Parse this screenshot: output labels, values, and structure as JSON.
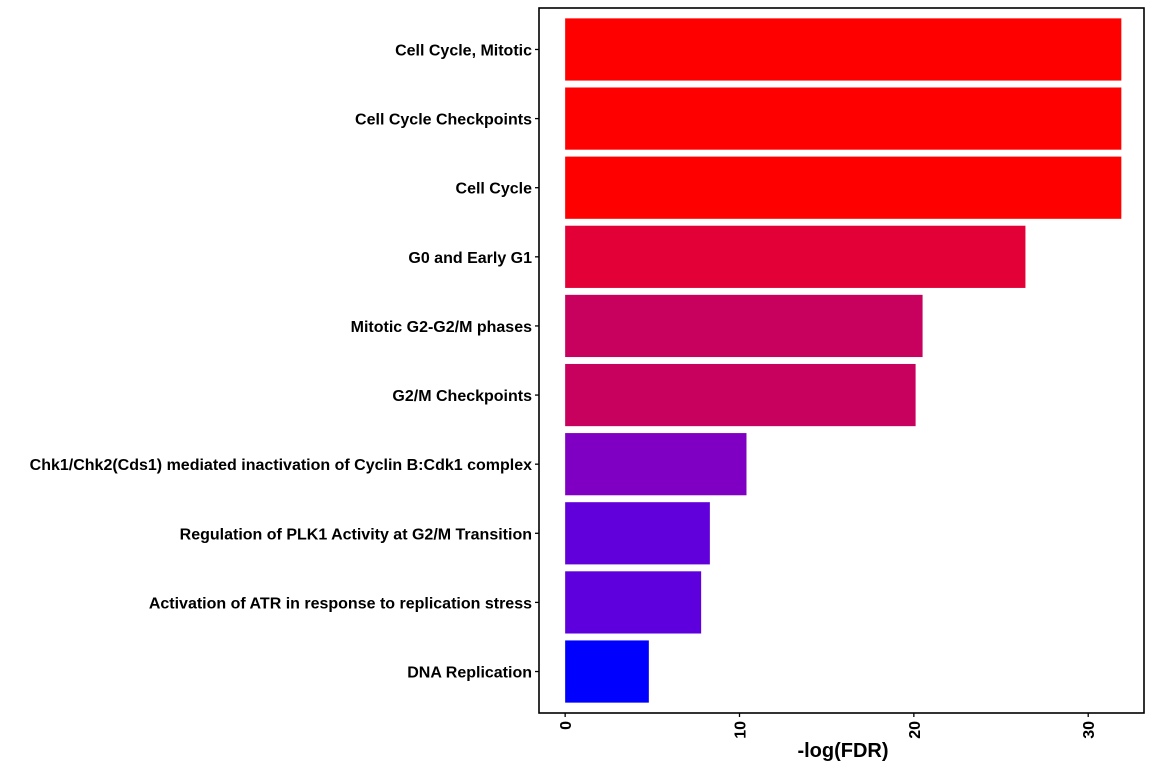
{
  "chart_data": {
    "type": "bar",
    "orientation": "horizontal",
    "categories": [
      "Cell Cycle, Mitotic",
      "Cell Cycle Checkpoints",
      "Cell Cycle",
      "G0 and Early G1",
      "Mitotic G2-G2/M phases",
      "G2/M Checkpoints",
      "Chk1/Chk2(Cds1) mediated inactivation of Cyclin B:Cdk1 complex",
      "Regulation of PLK1 Activity at G2/M Transition",
      "Activation of ATR in response to replication stress",
      "DNA Replication"
    ],
    "values": [
      31.9,
      31.9,
      31.9,
      26.4,
      20.5,
      20.1,
      10.4,
      8.3,
      7.8,
      4.8
    ],
    "colors": [
      "#FF0000",
      "#FF0000",
      "#FF0000",
      "#E30036",
      "#C8005E",
      "#C8005E",
      "#7F00C3",
      "#6200DB",
      "#5E00DE",
      "#0000FF"
    ],
    "title": "",
    "xlabel": "-log(FDR)",
    "ylabel": "",
    "xlim": [
      -1.5,
      33.2
    ],
    "xticks": [
      0,
      10,
      20,
      30
    ],
    "xtick_labels": [
      "0",
      "10",
      "20",
      "30"
    ],
    "grid": false,
    "legend": "none"
  }
}
